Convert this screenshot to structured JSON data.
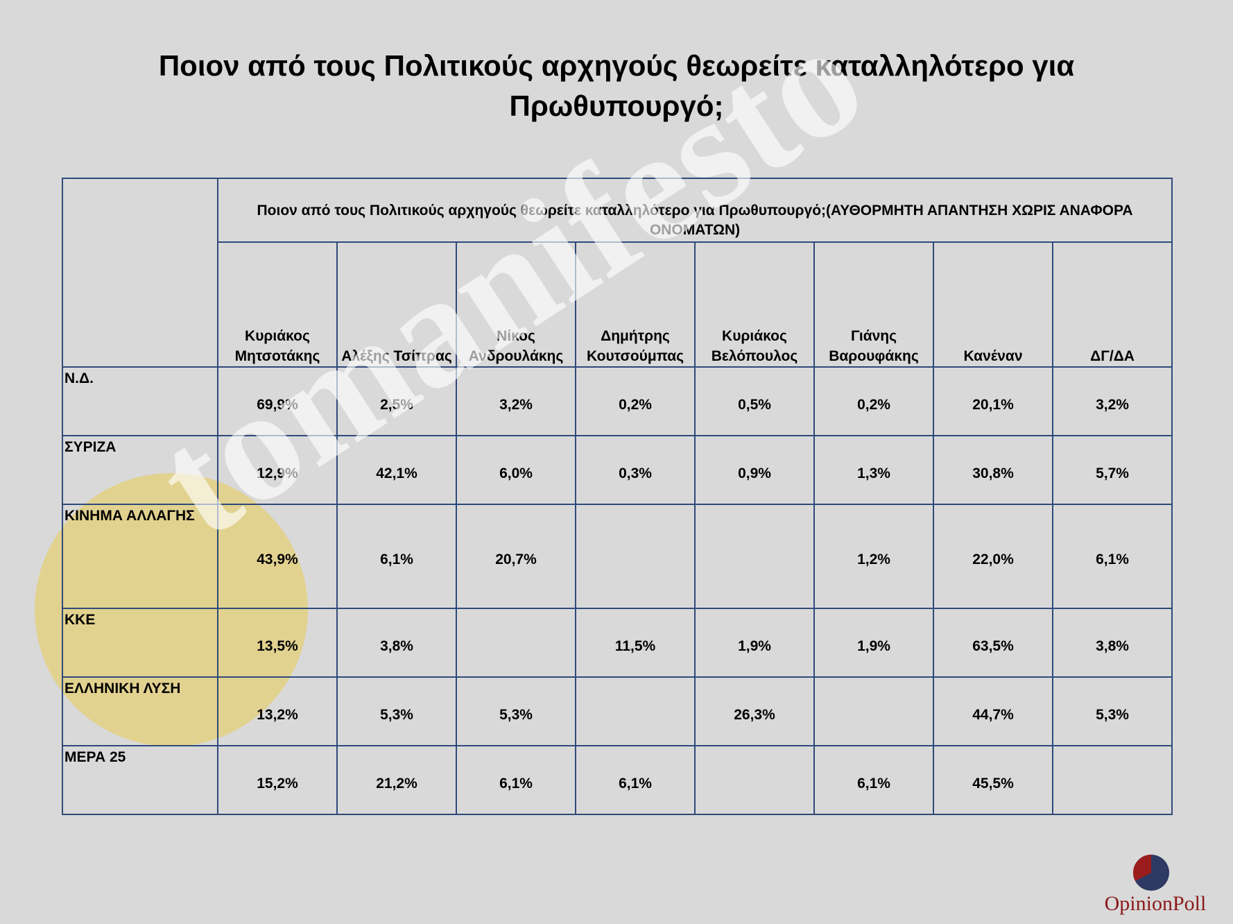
{
  "title": "Ποιον από τους Πολιτικούς αρχηγούς θεωρείτε καταλληλότερο για Πρωθυπουργό;",
  "table": {
    "question": "Ποιον από τους Πολιτικούς αρχηγούς θεωρείτε καταλληλότερο για Πρωθυπουργό;(ΑΥΘΟΡΜΗΤΗ ΑΠΑΝΤΗΣΗ ΧΩΡΙΣ ΑΝΑΦΟΡΑ ΟΝΟΜΑΤΩΝ)",
    "columns": [
      {
        "line1": "Κυριάκος",
        "line2": "Μητσοτάκης"
      },
      {
        "line1": "",
        "line2": "Αλέξης Τσίπρας"
      },
      {
        "line1": "Νίκος",
        "line2": "Ανδρουλάκης"
      },
      {
        "line1": "Δημήτρης",
        "line2": "Κουτσούμπας"
      },
      {
        "line1": "Κυριάκος",
        "line2": "Βελόπουλος"
      },
      {
        "line1": "Γιάνης",
        "line2": "Βαρουφάκης"
      },
      {
        "line1": "",
        "line2": "Κανέναν"
      },
      {
        "line1": "",
        "line2": "ΔΓ/ΔΑ"
      }
    ],
    "rows": [
      {
        "label": "Ν.Δ.",
        "values": [
          "69,9%",
          "2,5%",
          "3,2%",
          "0,2%",
          "0,5%",
          "0,2%",
          "20,1%",
          "3,2%"
        ]
      },
      {
        "label": "ΣΥΡΙΖΑ",
        "values": [
          "12,9%",
          "42,1%",
          "6,0%",
          "0,3%",
          "0,9%",
          "1,3%",
          "30,8%",
          "5,7%"
        ]
      },
      {
        "label": "ΚΙΝΗΜΑ ΑΛΛΑΓΗΣ",
        "values": [
          "43,9%",
          "6,1%",
          "20,7%",
          "",
          "",
          "1,2%",
          "22,0%",
          "6,1%"
        ]
      },
      {
        "label": "ΚΚΕ",
        "values": [
          "13,5%",
          "3,8%",
          "",
          "11,5%",
          "1,9%",
          "1,9%",
          "63,5%",
          "3,8%"
        ]
      },
      {
        "label": "ΕΛΛΗΝΙΚΗ ΛΥΣΗ",
        "values": [
          "13,2%",
          "5,3%",
          "5,3%",
          "",
          "26,3%",
          "",
          "44,7%",
          "5,3%"
        ]
      },
      {
        "label": "ΜΕΡΑ 25",
        "values": [
          "15,2%",
          "21,2%",
          "6,1%",
          "6,1%",
          "",
          "6,1%",
          "45,5%",
          ""
        ]
      }
    ]
  },
  "watermark": {
    "text": "tomanifesto",
    "circle_color": "#e5cf72"
  },
  "logo": {
    "text": "OpinionPoll",
    "colors": {
      "red": "#9b1c1c",
      "navy": "#2e3a63"
    }
  }
}
